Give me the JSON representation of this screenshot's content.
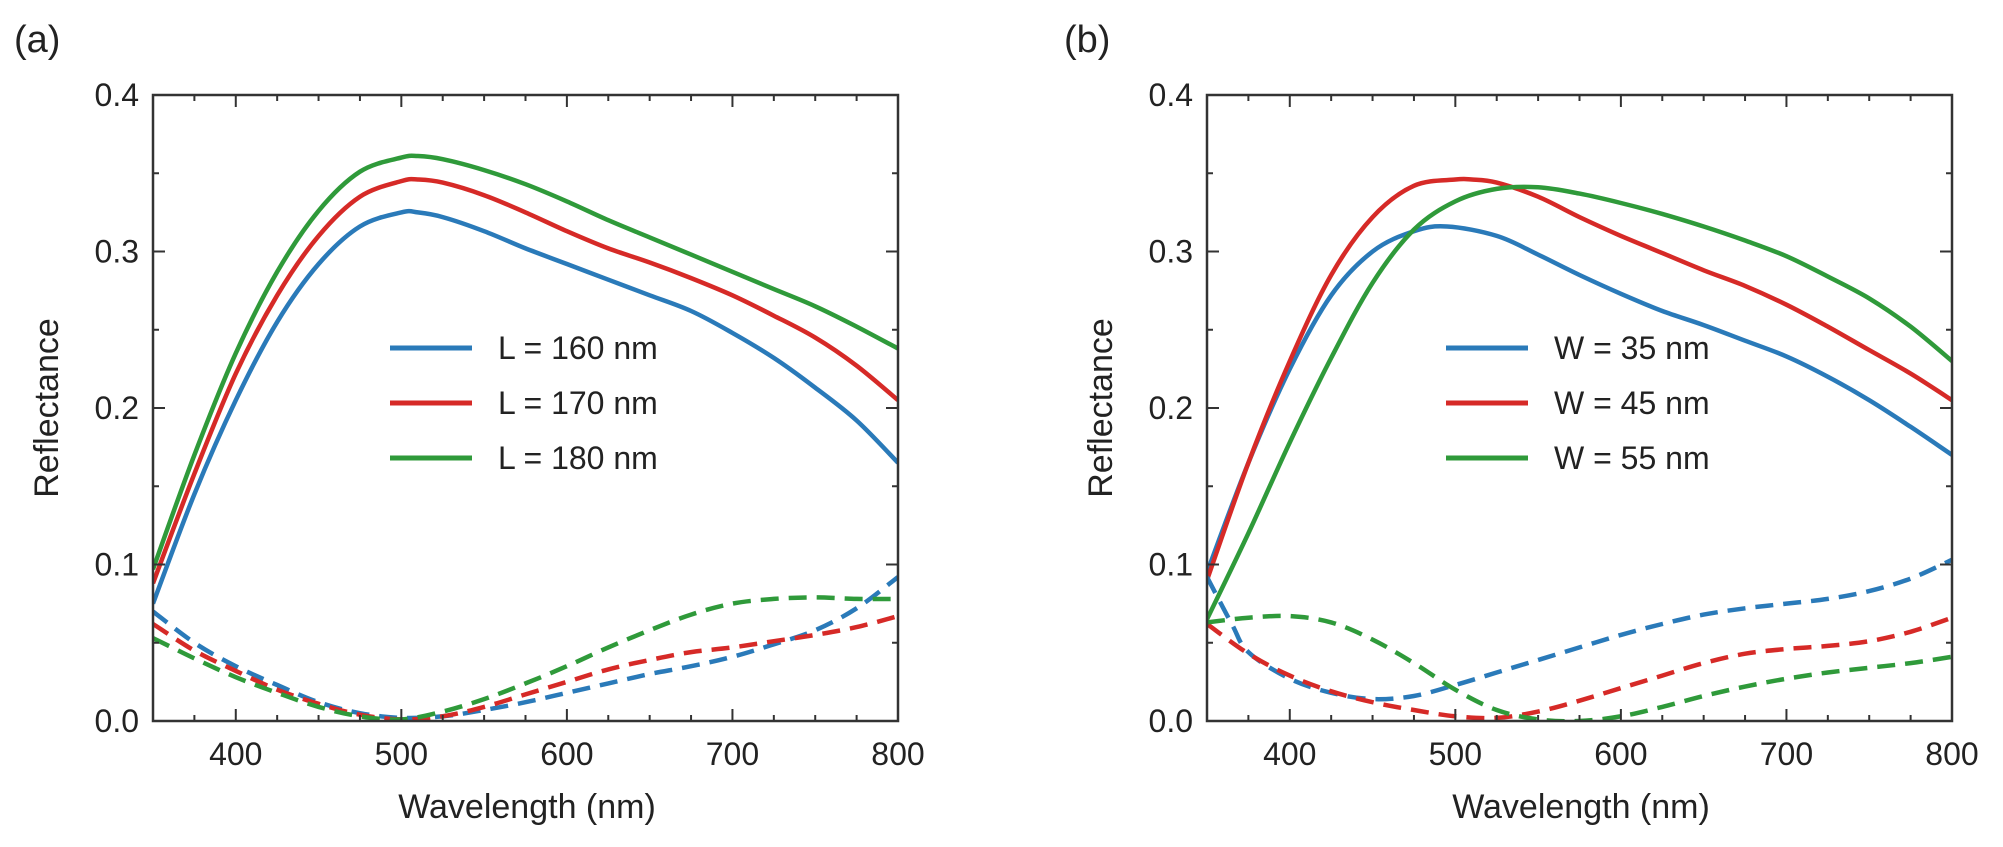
{
  "figure": {
    "panels": [
      {
        "panel_label": "(a)",
        "chart_index": 0
      },
      {
        "panel_label": "(b)",
        "chart_index": 1
      }
    ]
  },
  "chart_data": [
    {
      "type": "line",
      "panel": "(a)",
      "title": "",
      "xlabel": "Wavelength (nm)",
      "ylabel": "Reflectance",
      "xlim": [
        350,
        800
      ],
      "ylim": [
        0.0,
        0.4
      ],
      "xticks": [
        400,
        500,
        600,
        700,
        800
      ],
      "xtick_labels": [
        "400",
        "500",
        "600",
        "700",
        "800"
      ],
      "yticks": [
        0.0,
        0.1,
        0.2,
        0.3,
        0.4
      ],
      "ytick_labels": [
        "0.0",
        "0.1",
        "0.2",
        "0.3",
        "0.4"
      ],
      "grid": false,
      "legend_position": "center-right",
      "legend_note": "solid lines listed in legend; dashed lines share series colours",
      "series": [
        {
          "name": "L = 160 nm",
          "color": "#2a7ab9",
          "style": "solid",
          "in_legend": true,
          "x": [
            350,
            375,
            400,
            425,
            450,
            475,
            500,
            510,
            525,
            550,
            575,
            600,
            625,
            650,
            675,
            700,
            725,
            750,
            775,
            800
          ],
          "y": [
            0.075,
            0.145,
            0.205,
            0.255,
            0.292,
            0.316,
            0.325,
            0.325,
            0.322,
            0.313,
            0.302,
            0.292,
            0.282,
            0.272,
            0.262,
            0.248,
            0.232,
            0.213,
            0.192,
            0.165
          ]
        },
        {
          "name": "L = 170 nm",
          "color": "#d62a27",
          "style": "solid",
          "in_legend": true,
          "x": [
            350,
            375,
            400,
            425,
            450,
            475,
            500,
            510,
            525,
            550,
            575,
            600,
            625,
            650,
            675,
            700,
            725,
            750,
            775,
            800
          ],
          "y": [
            0.088,
            0.158,
            0.222,
            0.272,
            0.31,
            0.335,
            0.345,
            0.346,
            0.344,
            0.336,
            0.325,
            0.313,
            0.302,
            0.293,
            0.283,
            0.272,
            0.259,
            0.245,
            0.227,
            0.205
          ]
        },
        {
          "name": "L = 180 nm",
          "color": "#2f9a3a",
          "style": "solid",
          "in_legend": true,
          "x": [
            350,
            375,
            400,
            425,
            450,
            475,
            500,
            510,
            525,
            550,
            575,
            600,
            625,
            650,
            675,
            700,
            725,
            750,
            775,
            800
          ],
          "y": [
            0.097,
            0.17,
            0.235,
            0.287,
            0.326,
            0.351,
            0.36,
            0.361,
            0.359,
            0.352,
            0.343,
            0.332,
            0.32,
            0.309,
            0.298,
            0.287,
            0.276,
            0.265,
            0.252,
            0.238
          ]
        },
        {
          "name": "L = 160 nm (dashed)",
          "color": "#2a7ab9",
          "style": "dashed",
          "in_legend": false,
          "x": [
            350,
            375,
            400,
            425,
            450,
            475,
            500,
            525,
            550,
            575,
            600,
            625,
            650,
            675,
            700,
            725,
            750,
            775,
            800
          ],
          "y": [
            0.07,
            0.05,
            0.035,
            0.023,
            0.012,
            0.005,
            0.002,
            0.003,
            0.007,
            0.012,
            0.018,
            0.024,
            0.03,
            0.035,
            0.041,
            0.049,
            0.058,
            0.072,
            0.092
          ]
        },
        {
          "name": "L = 170 nm (dashed)",
          "color": "#d62a27",
          "style": "dashed",
          "in_legend": false,
          "x": [
            350,
            375,
            400,
            425,
            450,
            475,
            500,
            525,
            550,
            575,
            600,
            625,
            650,
            675,
            700,
            725,
            750,
            775,
            800
          ],
          "y": [
            0.062,
            0.045,
            0.032,
            0.02,
            0.011,
            0.004,
            0.001,
            0.003,
            0.009,
            0.017,
            0.025,
            0.033,
            0.039,
            0.044,
            0.047,
            0.051,
            0.055,
            0.06,
            0.067
          ]
        },
        {
          "name": "L = 180 nm (dashed)",
          "color": "#2f9a3a",
          "style": "dashed",
          "in_legend": false,
          "x": [
            350,
            375,
            400,
            425,
            450,
            475,
            500,
            525,
            550,
            575,
            600,
            625,
            650,
            675,
            700,
            725,
            750,
            775,
            800
          ],
          "y": [
            0.053,
            0.04,
            0.028,
            0.018,
            0.009,
            0.003,
            0.001,
            0.006,
            0.014,
            0.024,
            0.035,
            0.047,
            0.058,
            0.068,
            0.075,
            0.078,
            0.079,
            0.078,
            0.078
          ]
        }
      ]
    },
    {
      "type": "line",
      "panel": "(b)",
      "title": "",
      "xlabel": "Wavelength (nm)",
      "ylabel": "Reflectance",
      "xlim": [
        350,
        800
      ],
      "ylim": [
        0.0,
        0.4
      ],
      "xticks": [
        400,
        500,
        600,
        700,
        800
      ],
      "xtick_labels": [
        "400",
        "500",
        "600",
        "700",
        "800"
      ],
      "yticks": [
        0.0,
        0.1,
        0.2,
        0.3,
        0.4
      ],
      "ytick_labels": [
        "0.0",
        "0.1",
        "0.2",
        "0.3",
        "0.4"
      ],
      "grid": false,
      "legend_position": "center-right",
      "legend_note": "solid lines listed in legend; dashed lines share series colours",
      "series": [
        {
          "name": "W = 35 nm",
          "color": "#2a7ab9",
          "style": "solid",
          "in_legend": true,
          "x": [
            350,
            375,
            400,
            425,
            450,
            475,
            495,
            525,
            550,
            575,
            600,
            625,
            650,
            675,
            700,
            725,
            750,
            775,
            800
          ],
          "y": [
            0.095,
            0.165,
            0.225,
            0.272,
            0.3,
            0.313,
            0.316,
            0.31,
            0.298,
            0.285,
            0.273,
            0.262,
            0.253,
            0.243,
            0.233,
            0.22,
            0.205,
            0.188,
            0.17
          ]
        },
        {
          "name": "W = 45 nm",
          "color": "#d62a27",
          "style": "solid",
          "in_legend": true,
          "x": [
            350,
            375,
            400,
            425,
            450,
            475,
            500,
            510,
            525,
            550,
            575,
            600,
            625,
            650,
            675,
            700,
            725,
            750,
            775,
            800
          ],
          "y": [
            0.09,
            0.165,
            0.23,
            0.285,
            0.322,
            0.342,
            0.346,
            0.346,
            0.344,
            0.335,
            0.322,
            0.31,
            0.299,
            0.288,
            0.278,
            0.266,
            0.252,
            0.237,
            0.222,
            0.205
          ]
        },
        {
          "name": "W = 55 nm",
          "color": "#2f9a3a",
          "style": "solid",
          "in_legend": true,
          "x": [
            350,
            375,
            400,
            425,
            450,
            475,
            500,
            525,
            550,
            575,
            600,
            625,
            650,
            675,
            700,
            725,
            750,
            775,
            800
          ],
          "y": [
            0.065,
            0.12,
            0.178,
            0.232,
            0.28,
            0.314,
            0.332,
            0.34,
            0.341,
            0.337,
            0.331,
            0.324,
            0.316,
            0.307,
            0.297,
            0.284,
            0.27,
            0.252,
            0.23
          ]
        },
        {
          "name": "W = 35 nm (dashed)",
          "color": "#2a7ab9",
          "style": "dashed",
          "in_legend": false,
          "x": [
            350,
            365,
            375,
            400,
            425,
            450,
            475,
            500,
            525,
            550,
            575,
            600,
            625,
            650,
            675,
            700,
            725,
            750,
            775,
            800
          ],
          "y": [
            0.092,
            0.062,
            0.044,
            0.027,
            0.018,
            0.014,
            0.016,
            0.023,
            0.031,
            0.039,
            0.047,
            0.055,
            0.062,
            0.068,
            0.072,
            0.075,
            0.078,
            0.083,
            0.091,
            0.103
          ]
        },
        {
          "name": "W = 45 nm (dashed)",
          "color": "#d62a27",
          "style": "dashed",
          "in_legend": false,
          "x": [
            350,
            375,
            400,
            425,
            450,
            475,
            500,
            525,
            550,
            575,
            600,
            625,
            650,
            675,
            700,
            725,
            750,
            775,
            800
          ],
          "y": [
            0.062,
            0.043,
            0.029,
            0.019,
            0.012,
            0.007,
            0.003,
            0.002,
            0.006,
            0.013,
            0.021,
            0.029,
            0.037,
            0.043,
            0.046,
            0.048,
            0.051,
            0.057,
            0.066
          ]
        },
        {
          "name": "W = 55 nm (dashed)",
          "color": "#2f9a3a",
          "style": "dashed",
          "in_legend": false,
          "x": [
            350,
            375,
            400,
            425,
            450,
            475,
            500,
            525,
            550,
            575,
            600,
            625,
            650,
            675,
            700,
            725,
            750,
            775,
            800
          ],
          "y": [
            0.063,
            0.066,
            0.067,
            0.063,
            0.052,
            0.037,
            0.02,
            0.007,
            0.001,
            0.0,
            0.003,
            0.009,
            0.016,
            0.022,
            0.027,
            0.031,
            0.034,
            0.037,
            0.041
          ]
        }
      ]
    }
  ]
}
